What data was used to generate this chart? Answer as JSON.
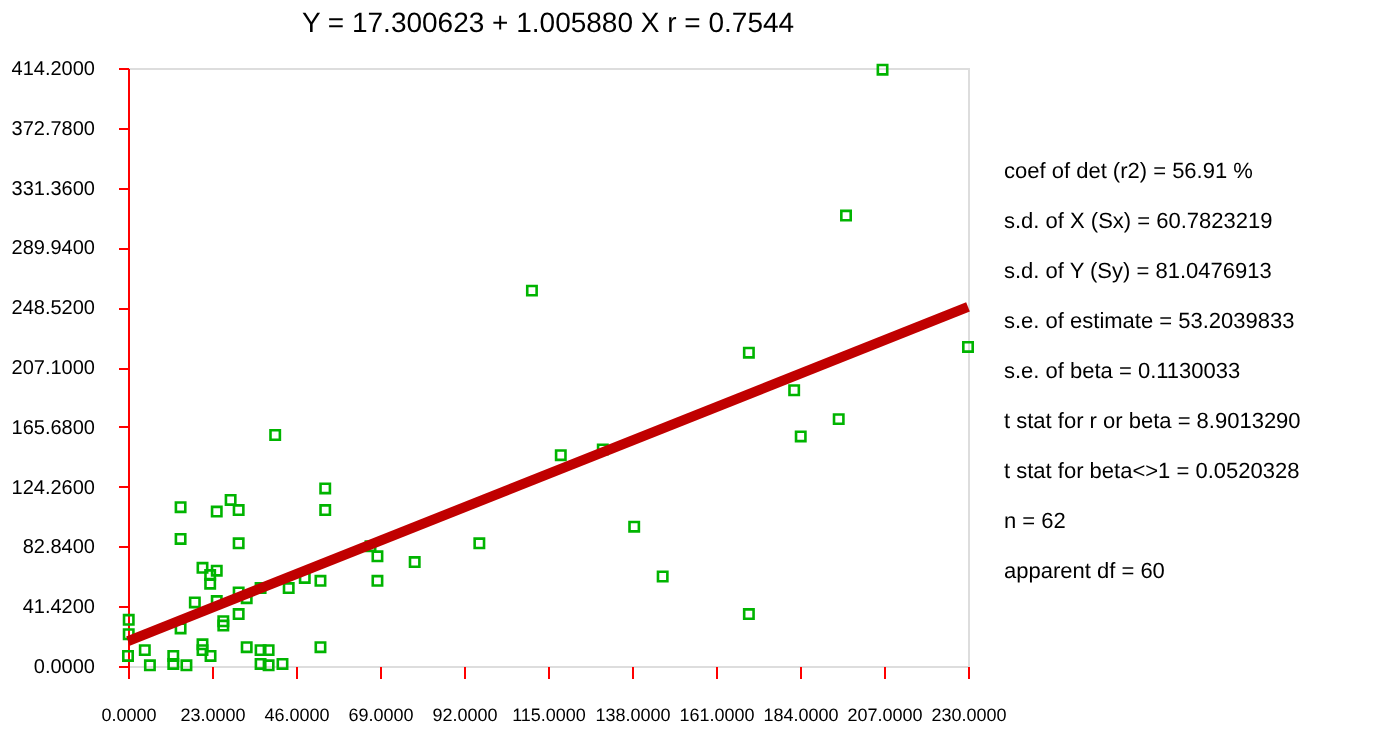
{
  "chart_data": {
    "type": "scatter",
    "title": "Y = 17.300623 + 1.005880 X      r = 0.7544",
    "xlim": [
      0,
      230
    ],
    "ylim": [
      0,
      414.2
    ],
    "xticks": [
      {
        "value": 0,
        "label": "0.0000"
      },
      {
        "value": 23,
        "label": "23.0000"
      },
      {
        "value": 46,
        "label": "46.0000"
      },
      {
        "value": 69,
        "label": "69.0000"
      },
      {
        "value": 92,
        "label": "92.0000"
      },
      {
        "value": 115,
        "label": "115.0000"
      },
      {
        "value": 138,
        "label": "138.0000"
      },
      {
        "value": 161,
        "label": "161.0000"
      },
      {
        "value": 184,
        "label": "184.0000"
      },
      {
        "value": 207,
        "label": "207.0000"
      },
      {
        "value": 230,
        "label": "230.0000"
      }
    ],
    "yticks": [
      {
        "value": 0,
        "label": "0.0000"
      },
      {
        "value": 41.42,
        "label": "41.4200"
      },
      {
        "value": 82.84,
        "label": "82.8400"
      },
      {
        "value": 124.26,
        "label": "124.2600"
      },
      {
        "value": 165.68,
        "label": "165.6800"
      },
      {
        "value": 207.1,
        "label": "207.1000"
      },
      {
        "value": 248.52,
        "label": "248.5200"
      },
      {
        "value": 289.94,
        "label": "289.9400"
      },
      {
        "value": 331.36,
        "label": "331.3600"
      },
      {
        "value": 372.78,
        "label": "372.7800"
      },
      {
        "value": 414.2,
        "label": "414.2000"
      }
    ],
    "grid": false,
    "marker": "square",
    "series": [
      {
        "color": "#00b400",
        "x": [
          0.2,
          0.2,
          0,
          4.6,
          6,
          12.4,
          12.4,
          16,
          14.4,
          14.4,
          14.4,
          18.3,
          20.4,
          20.4,
          20.4,
          22.5,
          22.5,
          22.6,
          24.3,
          24.3,
          24.3,
          26.1,
          26.1,
          28.1,
          30.3,
          30.3,
          30.3,
          30.3,
          32.5,
          32.5,
          36.3,
          36.3,
          36.3,
          38.5,
          38.5,
          40.3,
          42.3,
          44,
          48.4,
          52.7,
          52.7,
          54,
          54,
          66.4,
          68.3,
          68.3,
          78.5,
          96.2,
          110.6,
          118.5,
          130,
          138.6,
          146.4,
          170,
          170,
          182.4,
          184.2,
          194.6,
          196.6,
          206.6,
          230
        ],
        "values": [
          32,
          22,
          7,
          11,
          0.5,
          7,
          1.4,
          0.5,
          110,
          88,
          26,
          44,
          68,
          15,
          11,
          63,
          57,
          7,
          66,
          107,
          45,
          31,
          28,
          115,
          108,
          85,
          51,
          36,
          47,
          13,
          54,
          11,
          1.4,
          11,
          0.5,
          160,
          1.4,
          54,
          61,
          59,
          13,
          123,
          108,
          83,
          76,
          59,
          72,
          85,
          260,
          146,
          150,
          96.5,
          62,
          217,
          36,
          191,
          159,
          171,
          312,
          413,
          221
        ]
      },
      {
        "type": "line",
        "marker": "none",
        "color": "#c00000",
        "x": [
          0,
          230
        ],
        "values": [
          17.3,
          248.7
        ]
      }
    ],
    "annotations": [
      "coef of det (r2)        = 56.91 %",
      "s.d. of X    (Sx)        = 60.7823219",
      "s.d. of Y    (Sy)        = 81.0476913",
      "s.e. of estimate        = 53.2039833",
      "s.e. of beta               = 0.1130033",
      "t stat for r or beta     = 8.9013290",
      "t stat for beta<>1      = 0.0520328",
      "n                                  = 62",
      "apparent df                = 60"
    ]
  }
}
